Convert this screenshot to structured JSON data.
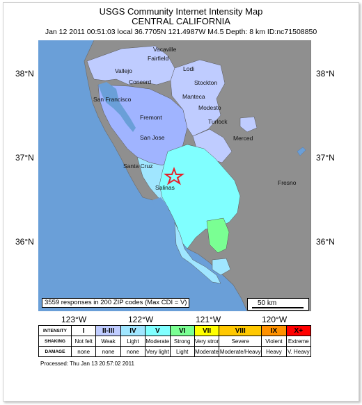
{
  "header": {
    "title_line1": "USGS Community Internet Intensity Map",
    "title_line2": "CENTRAL CALIFORNIA",
    "event_info": "Jan 12 2011 00:51:03 local 36.7705N 121.4987W M4.5 Depth: 8 km ID:nc71508850"
  },
  "axes": {
    "lat_labels": [
      "38°N",
      "37°N",
      "36°N"
    ],
    "lon_labels": [
      "123°W",
      "122°W",
      "121°W",
      "120°W"
    ]
  },
  "cities": [
    "Vacaville",
    "Fairfield",
    "Vallejo",
    "Concord",
    "Lodi",
    "Stockton",
    "San Francisco",
    "Manteca",
    "Modesto",
    "Fremont",
    "Turlock",
    "San Jose",
    "Merced",
    "Santa Cruz",
    "Salinas",
    "Fresno"
  ],
  "map_info": {
    "responses_text": "3559 responses in 200 ZIP codes (Max CDI = V)",
    "scale_label": "50 km"
  },
  "colors": {
    "ocean": "#6a9fd8",
    "land": "#8f8f8f",
    "int_I": "#ffffff",
    "int_II_III": "#bfccff",
    "int_IV": "#a0e6ff",
    "int_V": "#80ffff",
    "int_VI": "#7aff93",
    "epicenter": "#e8202a"
  },
  "legend": {
    "row_headers": [
      "INTENSITY",
      "SHAKING",
      "DAMAGE"
    ],
    "intensity": [
      "I",
      "II-III",
      "IV",
      "V",
      "VI",
      "VII",
      "VIII",
      "IX",
      "X+"
    ],
    "shaking": [
      "Not felt",
      "Weak",
      "Light",
      "Moderate",
      "Strong",
      "Very strong",
      "Severe",
      "Violent",
      "Extreme"
    ],
    "damage": [
      "none",
      "none",
      "none",
      "Very light",
      "Light",
      "Moderate",
      "Moderate/Heavy",
      "Heavy",
      "V. Heavy"
    ],
    "intensity_colors": [
      "#ffffff",
      "#bfccff",
      "#a0e6ff",
      "#80ffff",
      "#7aff93",
      "#ffff00",
      "#ffc800",
      "#ff9100",
      "#ff0000"
    ]
  },
  "footer": {
    "processed": "Processed: Thu Jan 13 20:57:02 2011"
  }
}
